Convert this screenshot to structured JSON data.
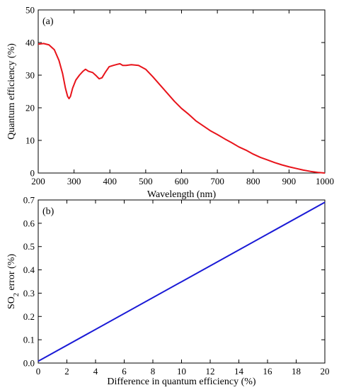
{
  "chart_data": [
    {
      "type": "line",
      "panel_label": "(a)",
      "xlabel": "Wavelength (nm)",
      "ylabel": "Quantum efficiency (%)",
      "xlim": [
        200,
        1000
      ],
      "ylim": [
        0,
        50
      ],
      "xticks": [
        200,
        300,
        400,
        500,
        600,
        700,
        800,
        900,
        1000
      ],
      "yticks": [
        0,
        10,
        20,
        30,
        40,
        50
      ],
      "grid": false,
      "series": [
        {
          "color": "#e8141b",
          "x": [
            200,
            215,
            230,
            245,
            258,
            268,
            276,
            282,
            286,
            290,
            296,
            305,
            315,
            325,
            332,
            340,
            352,
            362,
            370,
            378,
            388,
            398,
            410,
            420,
            428,
            436,
            445,
            460,
            480,
            500,
            520,
            540,
            560,
            580,
            600,
            620,
            640,
            660,
            680,
            700,
            720,
            740,
            760,
            780,
            800,
            820,
            840,
            860,
            880,
            900,
            920,
            940,
            960,
            980,
            1000
          ],
          "y": [
            39.5,
            39.7,
            39.3,
            37.8,
            34.5,
            30.5,
            26.0,
            23.5,
            22.8,
            23.5,
            26.0,
            28.5,
            30.0,
            31.2,
            31.8,
            31.2,
            30.8,
            29.8,
            28.9,
            29.2,
            31.0,
            32.6,
            33.0,
            33.3,
            33.5,
            33.0,
            33.0,
            33.2,
            33.0,
            31.8,
            29.5,
            27.0,
            24.5,
            22.0,
            19.8,
            18.0,
            16.0,
            14.5,
            13.0,
            11.8,
            10.5,
            9.3,
            8.0,
            7.0,
            5.8,
            4.8,
            4.0,
            3.2,
            2.5,
            1.9,
            1.4,
            0.9,
            0.5,
            0.2,
            0.0
          ]
        }
      ]
    },
    {
      "type": "line",
      "panel_label": "(b)",
      "xlabel": "Difference in quantum efficiency  (%)",
      "ylabel_main": "SO",
      "ylabel_sub": "2",
      "ylabel_tail": " error (%)",
      "xlim": [
        0,
        20
      ],
      "ylim": [
        0.0,
        0.7
      ],
      "xticks": [
        0,
        2,
        4,
        6,
        8,
        10,
        12,
        14,
        16,
        18,
        20
      ],
      "yticks": [
        0.0,
        0.1,
        0.2,
        0.3,
        0.4,
        0.5,
        0.6,
        0.7
      ],
      "grid": false,
      "series": [
        {
          "color": "#1a1ad6",
          "x": [
            0,
            20
          ],
          "y": [
            0.008,
            0.69
          ]
        }
      ]
    }
  ]
}
